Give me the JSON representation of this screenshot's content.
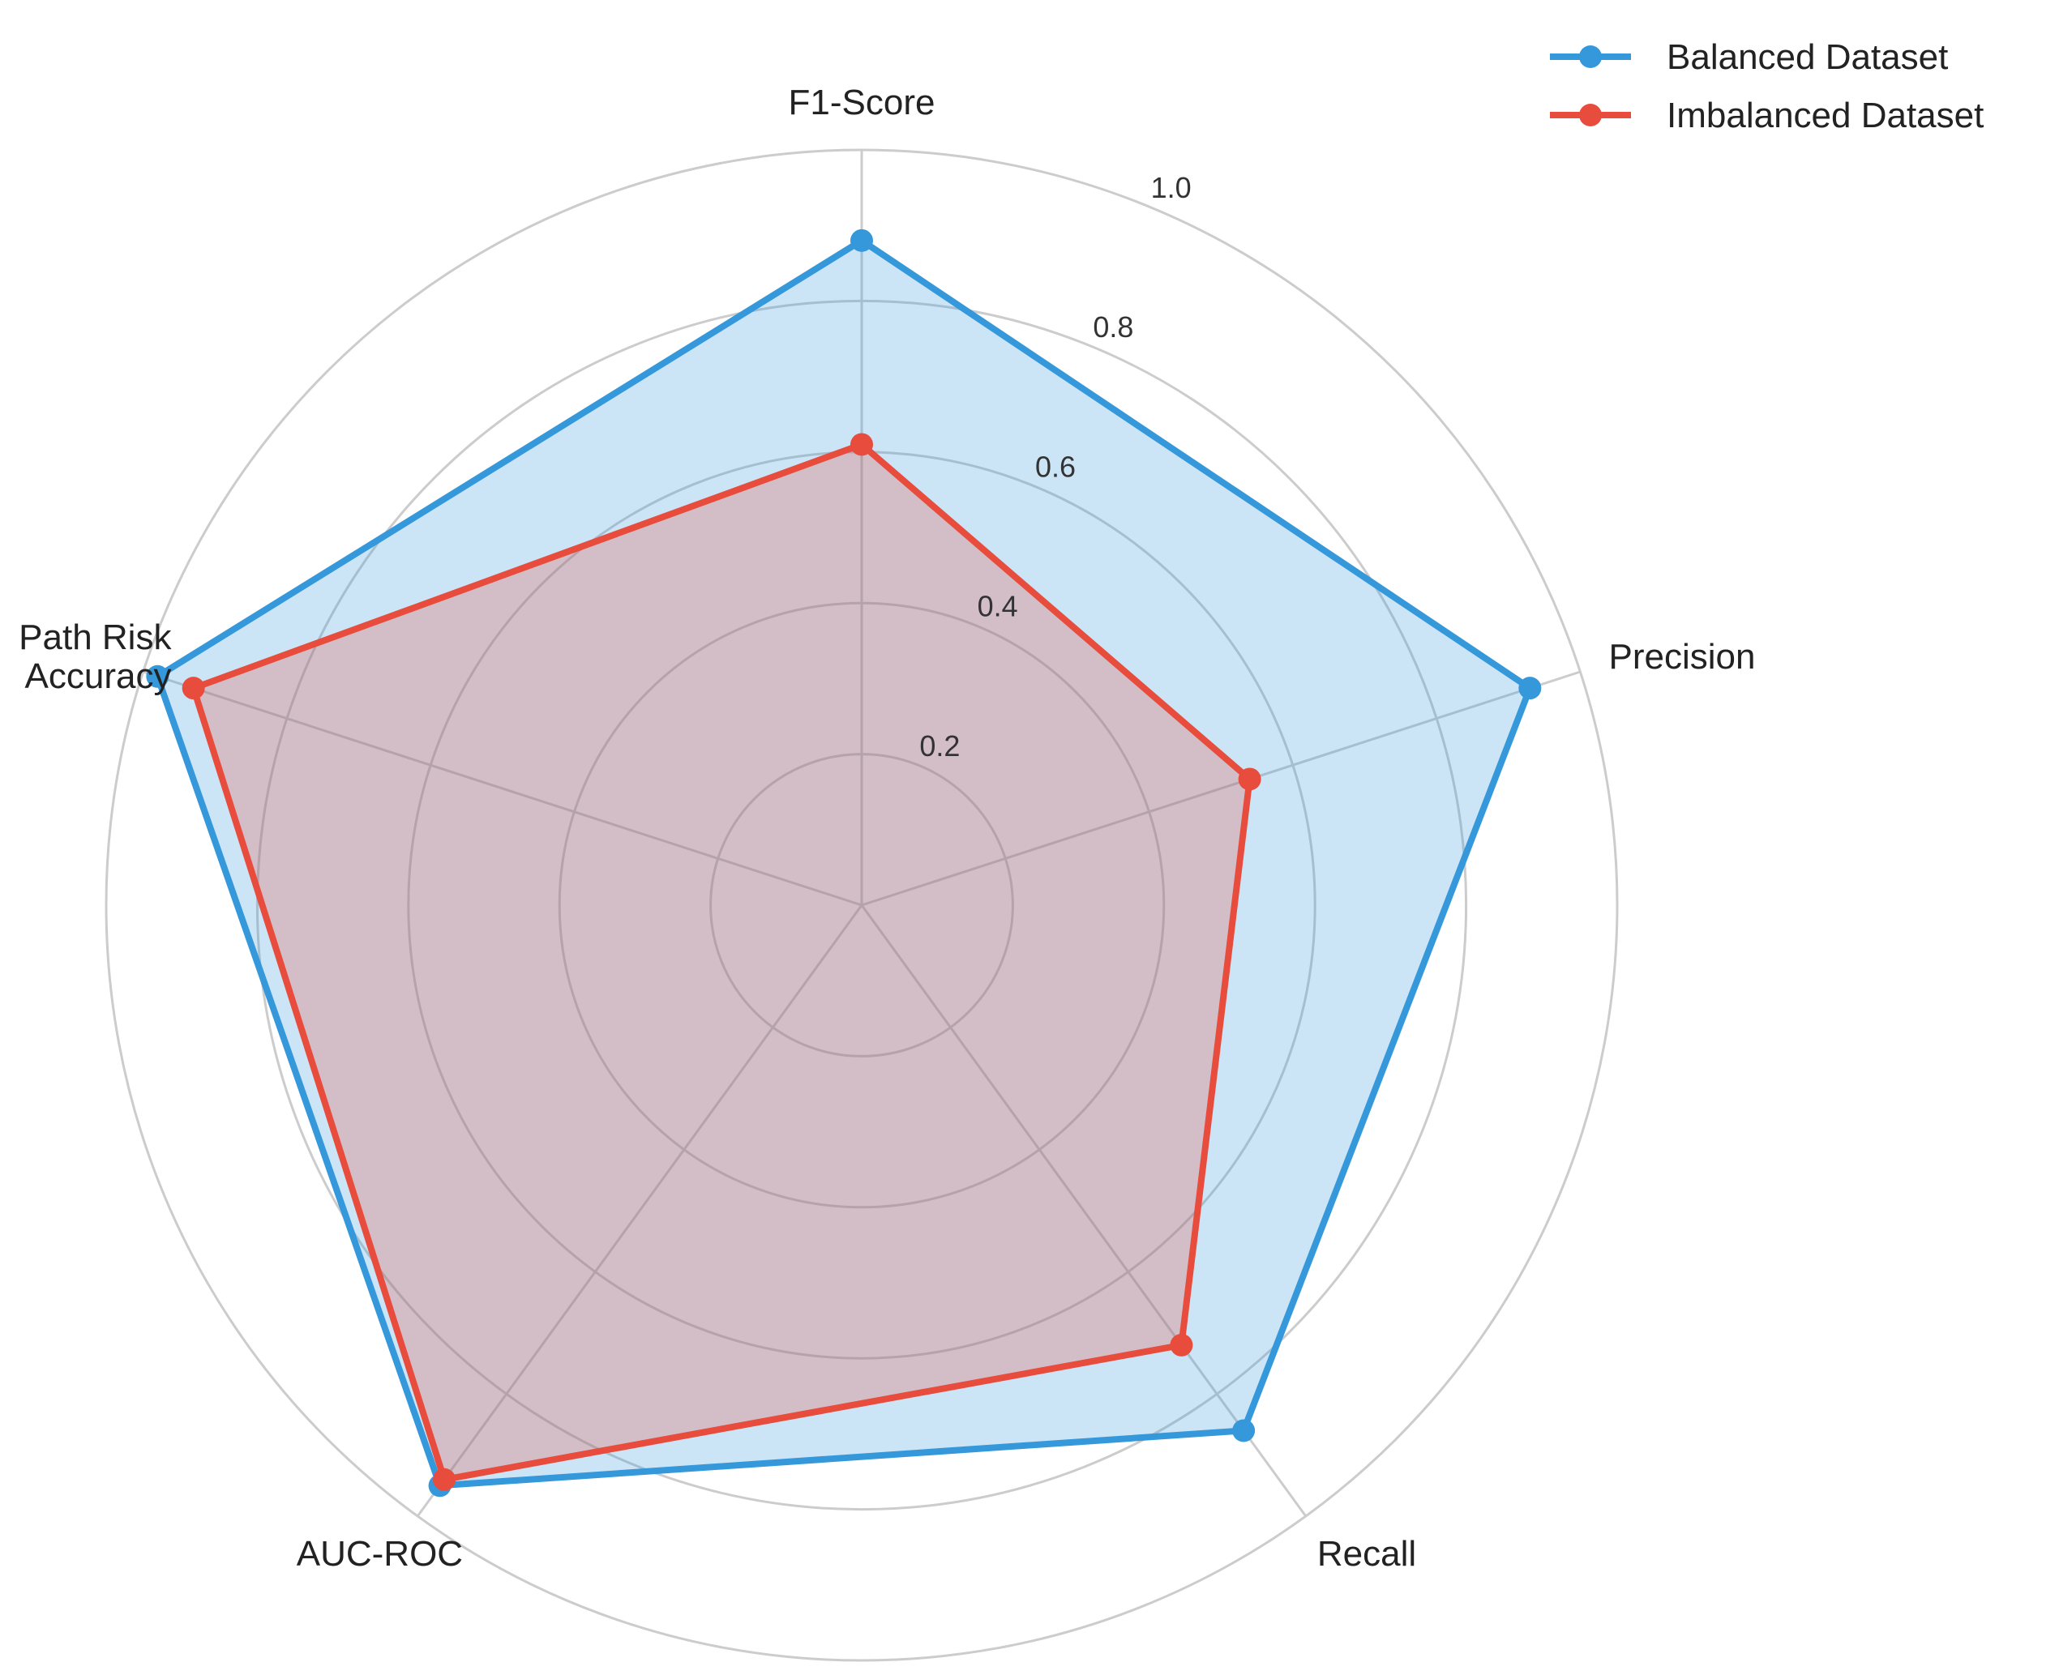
{
  "chart_data": {
    "type": "radar",
    "categories": [
      "F1-Score",
      "Precision",
      "Recall",
      "AUC-ROC",
      "Path Risk\nAccuracy"
    ],
    "rlim": [
      0,
      1.0
    ],
    "rticks": [
      0.2,
      0.4,
      0.6,
      0.8,
      1.0
    ],
    "rtick_labels": [
      "0.2",
      "0.4",
      "0.6",
      "0.8",
      "1.0"
    ],
    "grid": true,
    "legend_position": "top-right",
    "series": [
      {
        "name": "Balanced Dataset",
        "values": [
          0.88,
          0.93,
          0.86,
          0.95,
          0.98
        ],
        "color": "#3498db"
      },
      {
        "name": "Imbalanced Dataset",
        "values": [
          0.61,
          0.54,
          0.72,
          0.94,
          0.93
        ],
        "color": "#e74c3c"
      }
    ]
  }
}
